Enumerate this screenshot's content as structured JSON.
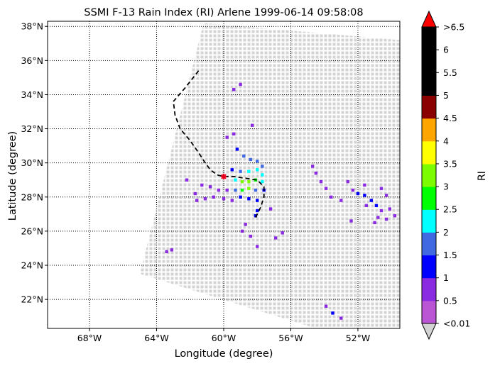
{
  "chart_data": {
    "type": "scatter",
    "title": "SSMI F-13 Rain Index (RI) Arlene 1999-06-14 09:58:08",
    "xlabel": "Longitude (degree)",
    "ylabel": "Latitude (degree)",
    "xlim": [
      -70.5,
      -49.5
    ],
    "ylim": [
      20.3,
      38.3
    ],
    "xticks": [
      {
        "value": -68,
        "label": "68°W"
      },
      {
        "value": -64,
        "label": "64°W"
      },
      {
        "value": -60,
        "label": "60°W"
      },
      {
        "value": -56,
        "label": "56°W"
      },
      {
        "value": -52,
        "label": "52°W"
      }
    ],
    "yticks": [
      {
        "value": 22,
        "label": "22°N"
      },
      {
        "value": 24,
        "label": "24°N"
      },
      {
        "value": 26,
        "label": "26°N"
      },
      {
        "value": 28,
        "label": "28°N"
      },
      {
        "value": 30,
        "label": "30°N"
      },
      {
        "value": 32,
        "label": "32°N"
      },
      {
        "value": 34,
        "label": "34°N"
      },
      {
        "value": 36,
        "label": "36°N"
      },
      {
        "value": 38,
        "label": "38°N"
      }
    ],
    "grid": "dotted",
    "swath": {
      "color": "#d3d3d3",
      "corners_lonlat": [
        [
          -61.2,
          38.2
        ],
        [
          -49.5,
          37.2
        ],
        [
          -49.5,
          20.3
        ],
        [
          -54.5,
          20.3
        ],
        [
          -65.0,
          23.5
        ]
      ]
    },
    "track": {
      "style": "dashed",
      "color": "#000000",
      "points": [
        [
          -61.5,
          35.4
        ],
        [
          -62.3,
          34.4
        ],
        [
          -63.0,
          33.6
        ],
        [
          -62.9,
          32.8
        ],
        [
          -62.6,
          32.0
        ],
        [
          -62.0,
          31.3
        ],
        [
          -61.5,
          30.6
        ],
        [
          -61.1,
          30.0
        ],
        [
          -60.8,
          29.6
        ],
        [
          -60.4,
          29.3
        ],
        [
          -60.0,
          29.2
        ],
        [
          -59.4,
          29.2
        ],
        [
          -58.7,
          29.1
        ],
        [
          -58.0,
          29.0
        ],
        [
          -57.6,
          28.6
        ],
        [
          -57.6,
          28.0
        ],
        [
          -57.8,
          27.4
        ],
        [
          -58.1,
          26.8
        ]
      ]
    },
    "storm_marker": {
      "lon": -60.0,
      "lat": 29.2,
      "color": "#e8001c"
    },
    "rain_cells": [
      {
        "lon": -59.4,
        "lat": 34.3,
        "ri": 0.5
      },
      {
        "lon": -59.0,
        "lat": 34.6,
        "ri": 0.5
      },
      {
        "lon": -59.8,
        "lat": 31.5,
        "ri": 0.5
      },
      {
        "lon": -59.4,
        "lat": 31.7,
        "ri": 0.5
      },
      {
        "lon": -58.3,
        "lat": 32.2,
        "ri": 0.5
      },
      {
        "lon": -58.8,
        "lat": 30.4,
        "ri": 1.5
      },
      {
        "lon": -58.4,
        "lat": 30.2,
        "ri": 1.5
      },
      {
        "lon": -58.0,
        "lat": 30.1,
        "ri": 1.5
      },
      {
        "lon": -57.7,
        "lat": 29.8,
        "ri": 1.5
      },
      {
        "lon": -59.2,
        "lat": 30.8,
        "ri": 1.0
      },
      {
        "lon": -59.5,
        "lat": 29.6,
        "ri": 1.0
      },
      {
        "lon": -59.0,
        "lat": 29.5,
        "ri": 1.75
      },
      {
        "lon": -58.5,
        "lat": 29.5,
        "ri": 2.25
      },
      {
        "lon": -58.0,
        "lat": 29.6,
        "ri": 2.25
      },
      {
        "lon": -57.7,
        "lat": 29.3,
        "ri": 2.25
      },
      {
        "lon": -59.3,
        "lat": 29.0,
        "ri": 2.25
      },
      {
        "lon": -58.9,
        "lat": 28.9,
        "ri": 3.25
      },
      {
        "lon": -58.5,
        "lat": 28.9,
        "ri": 3.25
      },
      {
        "lon": -58.1,
        "lat": 29.0,
        "ri": 2.75
      },
      {
        "lon": -57.7,
        "lat": 28.9,
        "ri": 2.25
      },
      {
        "lon": -59.3,
        "lat": 28.4,
        "ri": 1.75
      },
      {
        "lon": -58.9,
        "lat": 28.4,
        "ri": 2.75
      },
      {
        "lon": -58.5,
        "lat": 28.5,
        "ri": 3.25
      },
      {
        "lon": -58.1,
        "lat": 28.4,
        "ri": 1.75
      },
      {
        "lon": -57.6,
        "lat": 28.4,
        "ri": 1.25
      },
      {
        "lon": -59.0,
        "lat": 28.0,
        "ri": 1.25
      },
      {
        "lon": -58.5,
        "lat": 27.9,
        "ri": 1.25
      },
      {
        "lon": -58.0,
        "lat": 27.8,
        "ri": 1.25
      },
      {
        "lon": -58.0,
        "lat": 27.2,
        "ri": 1.25
      },
      {
        "lon": -58.1,
        "lat": 26.9,
        "ri": 1.25
      },
      {
        "lon": -61.3,
        "lat": 28.7,
        "ri": 0.5
      },
      {
        "lon": -60.8,
        "lat": 28.6,
        "ri": 0.5
      },
      {
        "lon": -60.3,
        "lat": 28.4,
        "ri": 0.5
      },
      {
        "lon": -59.8,
        "lat": 28.4,
        "ri": 0.5
      },
      {
        "lon": -61.6,
        "lat": 27.8,
        "ri": 0.5
      },
      {
        "lon": -61.1,
        "lat": 27.9,
        "ri": 0.5
      },
      {
        "lon": -60.6,
        "lat": 28.0,
        "ri": 0.5
      },
      {
        "lon": -60.0,
        "lat": 27.9,
        "ri": 0.5
      },
      {
        "lon": -59.5,
        "lat": 27.8,
        "ri": 0.5
      },
      {
        "lon": -62.2,
        "lat": 29.0,
        "ri": 0.5
      },
      {
        "lon": -61.7,
        "lat": 28.2,
        "ri": 0.5
      },
      {
        "lon": -57.2,
        "lat": 27.3,
        "ri": 0.5
      },
      {
        "lon": -58.7,
        "lat": 26.4,
        "ri": 0.5
      },
      {
        "lon": -58.9,
        "lat": 26.0,
        "ri": 0.5
      },
      {
        "lon": -58.4,
        "lat": 25.7,
        "ri": 0.5
      },
      {
        "lon": -56.5,
        "lat": 25.9,
        "ri": 0.5
      },
      {
        "lon": -56.9,
        "lat": 25.6,
        "ri": 0.5
      },
      {
        "lon": -58.0,
        "lat": 25.1,
        "ri": 0.5
      },
      {
        "lon": -54.7,
        "lat": 29.8,
        "ri": 0.5
      },
      {
        "lon": -54.5,
        "lat": 29.4,
        "ri": 0.5
      },
      {
        "lon": -54.2,
        "lat": 28.9,
        "ri": 0.5
      },
      {
        "lon": -53.9,
        "lat": 28.5,
        "ri": 0.5
      },
      {
        "lon": -53.6,
        "lat": 28.0,
        "ri": 0.5
      },
      {
        "lon": -53.0,
        "lat": 27.8,
        "ri": 0.5
      },
      {
        "lon": -52.6,
        "lat": 28.9,
        "ri": 0.5
      },
      {
        "lon": -52.3,
        "lat": 28.4,
        "ri": 0.5
      },
      {
        "lon": -51.6,
        "lat": 28.7,
        "ri": 0.5
      },
      {
        "lon": -52.0,
        "lat": 28.2,
        "ri": 1.25
      },
      {
        "lon": -51.6,
        "lat": 28.1,
        "ri": 1.25
      },
      {
        "lon": -51.2,
        "lat": 27.8,
        "ri": 1.25
      },
      {
        "lon": -50.9,
        "lat": 27.5,
        "ri": 1.25
      },
      {
        "lon": -51.5,
        "lat": 27.5,
        "ri": 0.75
      },
      {
        "lon": -50.6,
        "lat": 27.2,
        "ri": 0.75
      },
      {
        "lon": -50.1,
        "lat": 27.3,
        "ri": 0.5
      },
      {
        "lon": -50.8,
        "lat": 26.8,
        "ri": 0.5
      },
      {
        "lon": -50.3,
        "lat": 26.7,
        "ri": 0.5
      },
      {
        "lon": -49.8,
        "lat": 26.9,
        "ri": 0.5
      },
      {
        "lon": -52.4,
        "lat": 26.6,
        "ri": 0.5
      },
      {
        "lon": -51.0,
        "lat": 26.5,
        "ri": 0.5
      },
      {
        "lon": -50.6,
        "lat": 28.5,
        "ri": 0.5
      },
      {
        "lon": -50.3,
        "lat": 28.1,
        "ri": 0.5
      },
      {
        "lon": -63.4,
        "lat": 24.8,
        "ri": 0.5
      },
      {
        "lon": -63.1,
        "lat": 24.9,
        "ri": 0.5
      },
      {
        "lon": -53.9,
        "lat": 21.6,
        "ri": 0.5
      },
      {
        "lon": -53.5,
        "lat": 21.2,
        "ri": 1.0
      },
      {
        "lon": -53.0,
        "lat": 20.9,
        "ri": 0.5
      }
    ],
    "colorbar": {
      "label": "RI",
      "boundaries": [
        0.01,
        0.5,
        1,
        1.5,
        2,
        2.5,
        3,
        3.5,
        4,
        4.5,
        5,
        5.5,
        6,
        6.5
      ],
      "colors": [
        "#ba55d3",
        "#8a2be2",
        "#0000ff",
        "#4169e1",
        "#00ffff",
        "#00ff00",
        "#7cfc00",
        "#ffff00",
        "#ffa500",
        "#8b0000",
        "#000000",
        "#000000",
        "#000000"
      ],
      "under_color": "#d3d3d3",
      "over_color": "#ff0000",
      "tick_labels": [
        "<0.01",
        "0.5",
        "1",
        "1.5",
        "2",
        "2.5",
        "3",
        "3.5",
        "4",
        "4.5",
        "5",
        "5.5",
        "6",
        ">6.5"
      ]
    }
  }
}
